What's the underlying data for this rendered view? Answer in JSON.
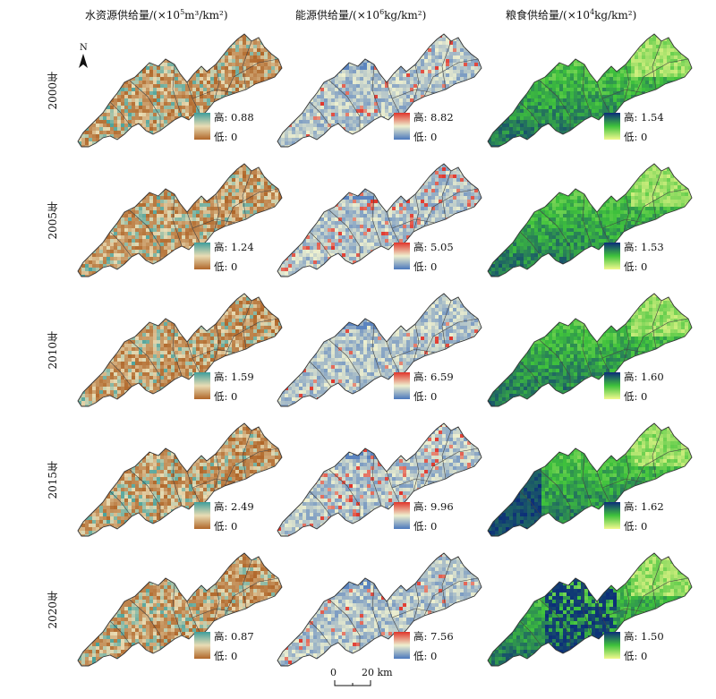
{
  "columns": [
    {
      "title_prefix": "水资源供给量/(×10",
      "title_exp": "5",
      "title_unit": "m³/km²)",
      "ramp": [
        "#b0672a",
        "#e9dcb4",
        "#3f9e9b"
      ]
    },
    {
      "title_prefix": "能源供给量/(×10",
      "title_exp": "6",
      "title_unit": "kg/km²)",
      "ramp": [
        "#4b78bd",
        "#eef0d0",
        "#e0342b"
      ]
    },
    {
      "title_prefix": "粮食供给量/(×10",
      "title_exp": "4",
      "title_unit": "kg/km²)",
      "ramp": [
        "#f2f98e",
        "#3fc23c",
        "#0c2d7a"
      ]
    }
  ],
  "rows": [
    "2000年",
    "2005年",
    "2010年",
    "2015年",
    "2020年"
  ],
  "legend": {
    "high_label": "高: ",
    "low_label": "低: ",
    "high_values": [
      [
        "0.88",
        "8.82",
        "1.54"
      ],
      [
        "1.24",
        "5.05",
        "1.53"
      ],
      [
        "1.59",
        "6.59",
        "1.60"
      ],
      [
        "2.49",
        "9.96",
        "1.62"
      ],
      [
        "0.87",
        "7.56",
        "1.50"
      ]
    ],
    "low_value": "0"
  },
  "north": "N",
  "scale": {
    "zero": "0",
    "end": "20 km"
  }
}
